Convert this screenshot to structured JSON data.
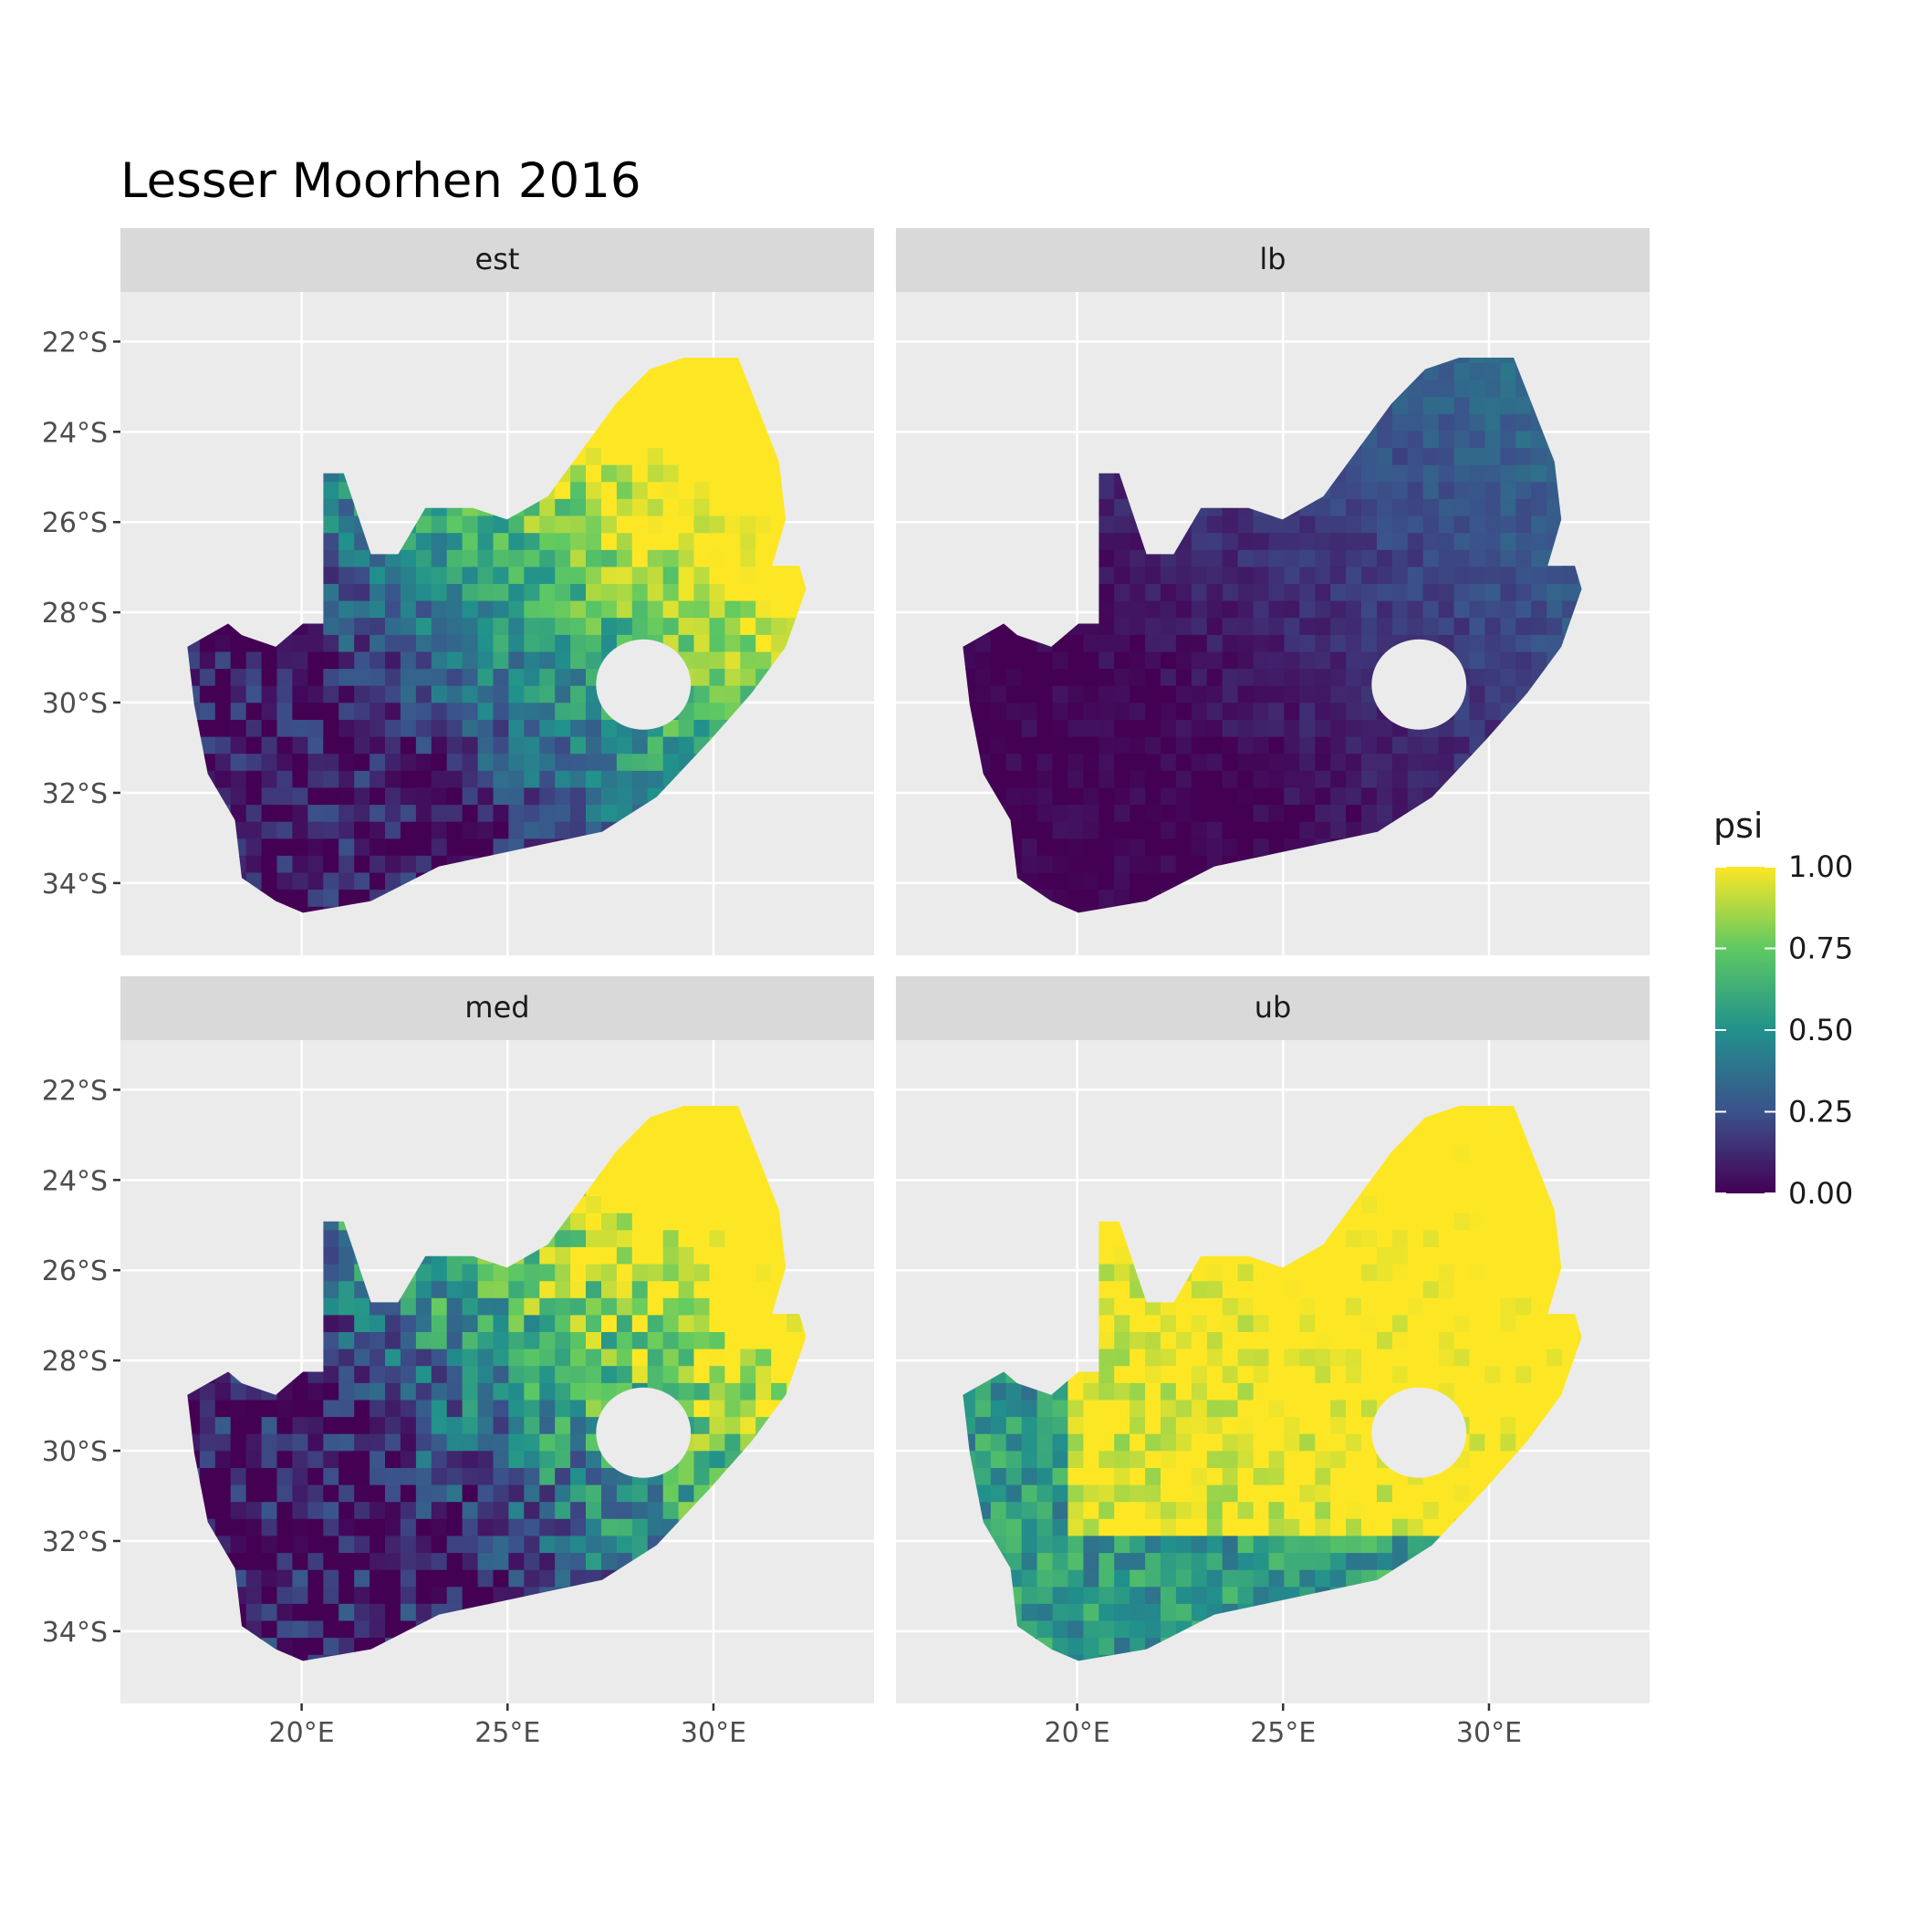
{
  "title": "Lesser Moorhen 2016",
  "chart_data": {
    "type": "heatmap",
    "subtype": "faceted-raster-map",
    "region": "South Africa",
    "panels": [
      {
        "label": "est",
        "pattern": "moderate: high (yellow-green) in north-east interior, low (purple) in west and south coast"
      },
      {
        "label": "lb",
        "pattern": "mostly near zero (dark purple), slightly higher in north-east"
      },
      {
        "label": "med",
        "pattern": "similar to est, slightly more contrast"
      },
      {
        "label": "ub",
        "pattern": "mostly high (yellow) across interior, lower along south-west and south coast"
      }
    ],
    "x_ticks": [
      "20°E",
      "25°E",
      "30°E"
    ],
    "y_ticks": [
      "22°S",
      "24°S",
      "26°S",
      "28°S",
      "30°S",
      "32°S",
      "34°S"
    ],
    "xlim": [
      15.6,
      33.9
    ],
    "ylim": [
      -35.6,
      -20.9
    ],
    "grid": true,
    "legend": {
      "title": "psi",
      "position": "right",
      "palette": "viridis",
      "ticks": [
        "1.00",
        "0.75",
        "0.50",
        "0.25",
        "0.00"
      ],
      "range": [
        0,
        1
      ]
    },
    "colors": {
      "panel_background": "#ebebeb",
      "strip_background": "#d9d9d9",
      "gridline": "#ffffff",
      "viridis": [
        "#440154",
        "#3b528b",
        "#21918c",
        "#5ec962",
        "#fde725"
      ]
    }
  }
}
